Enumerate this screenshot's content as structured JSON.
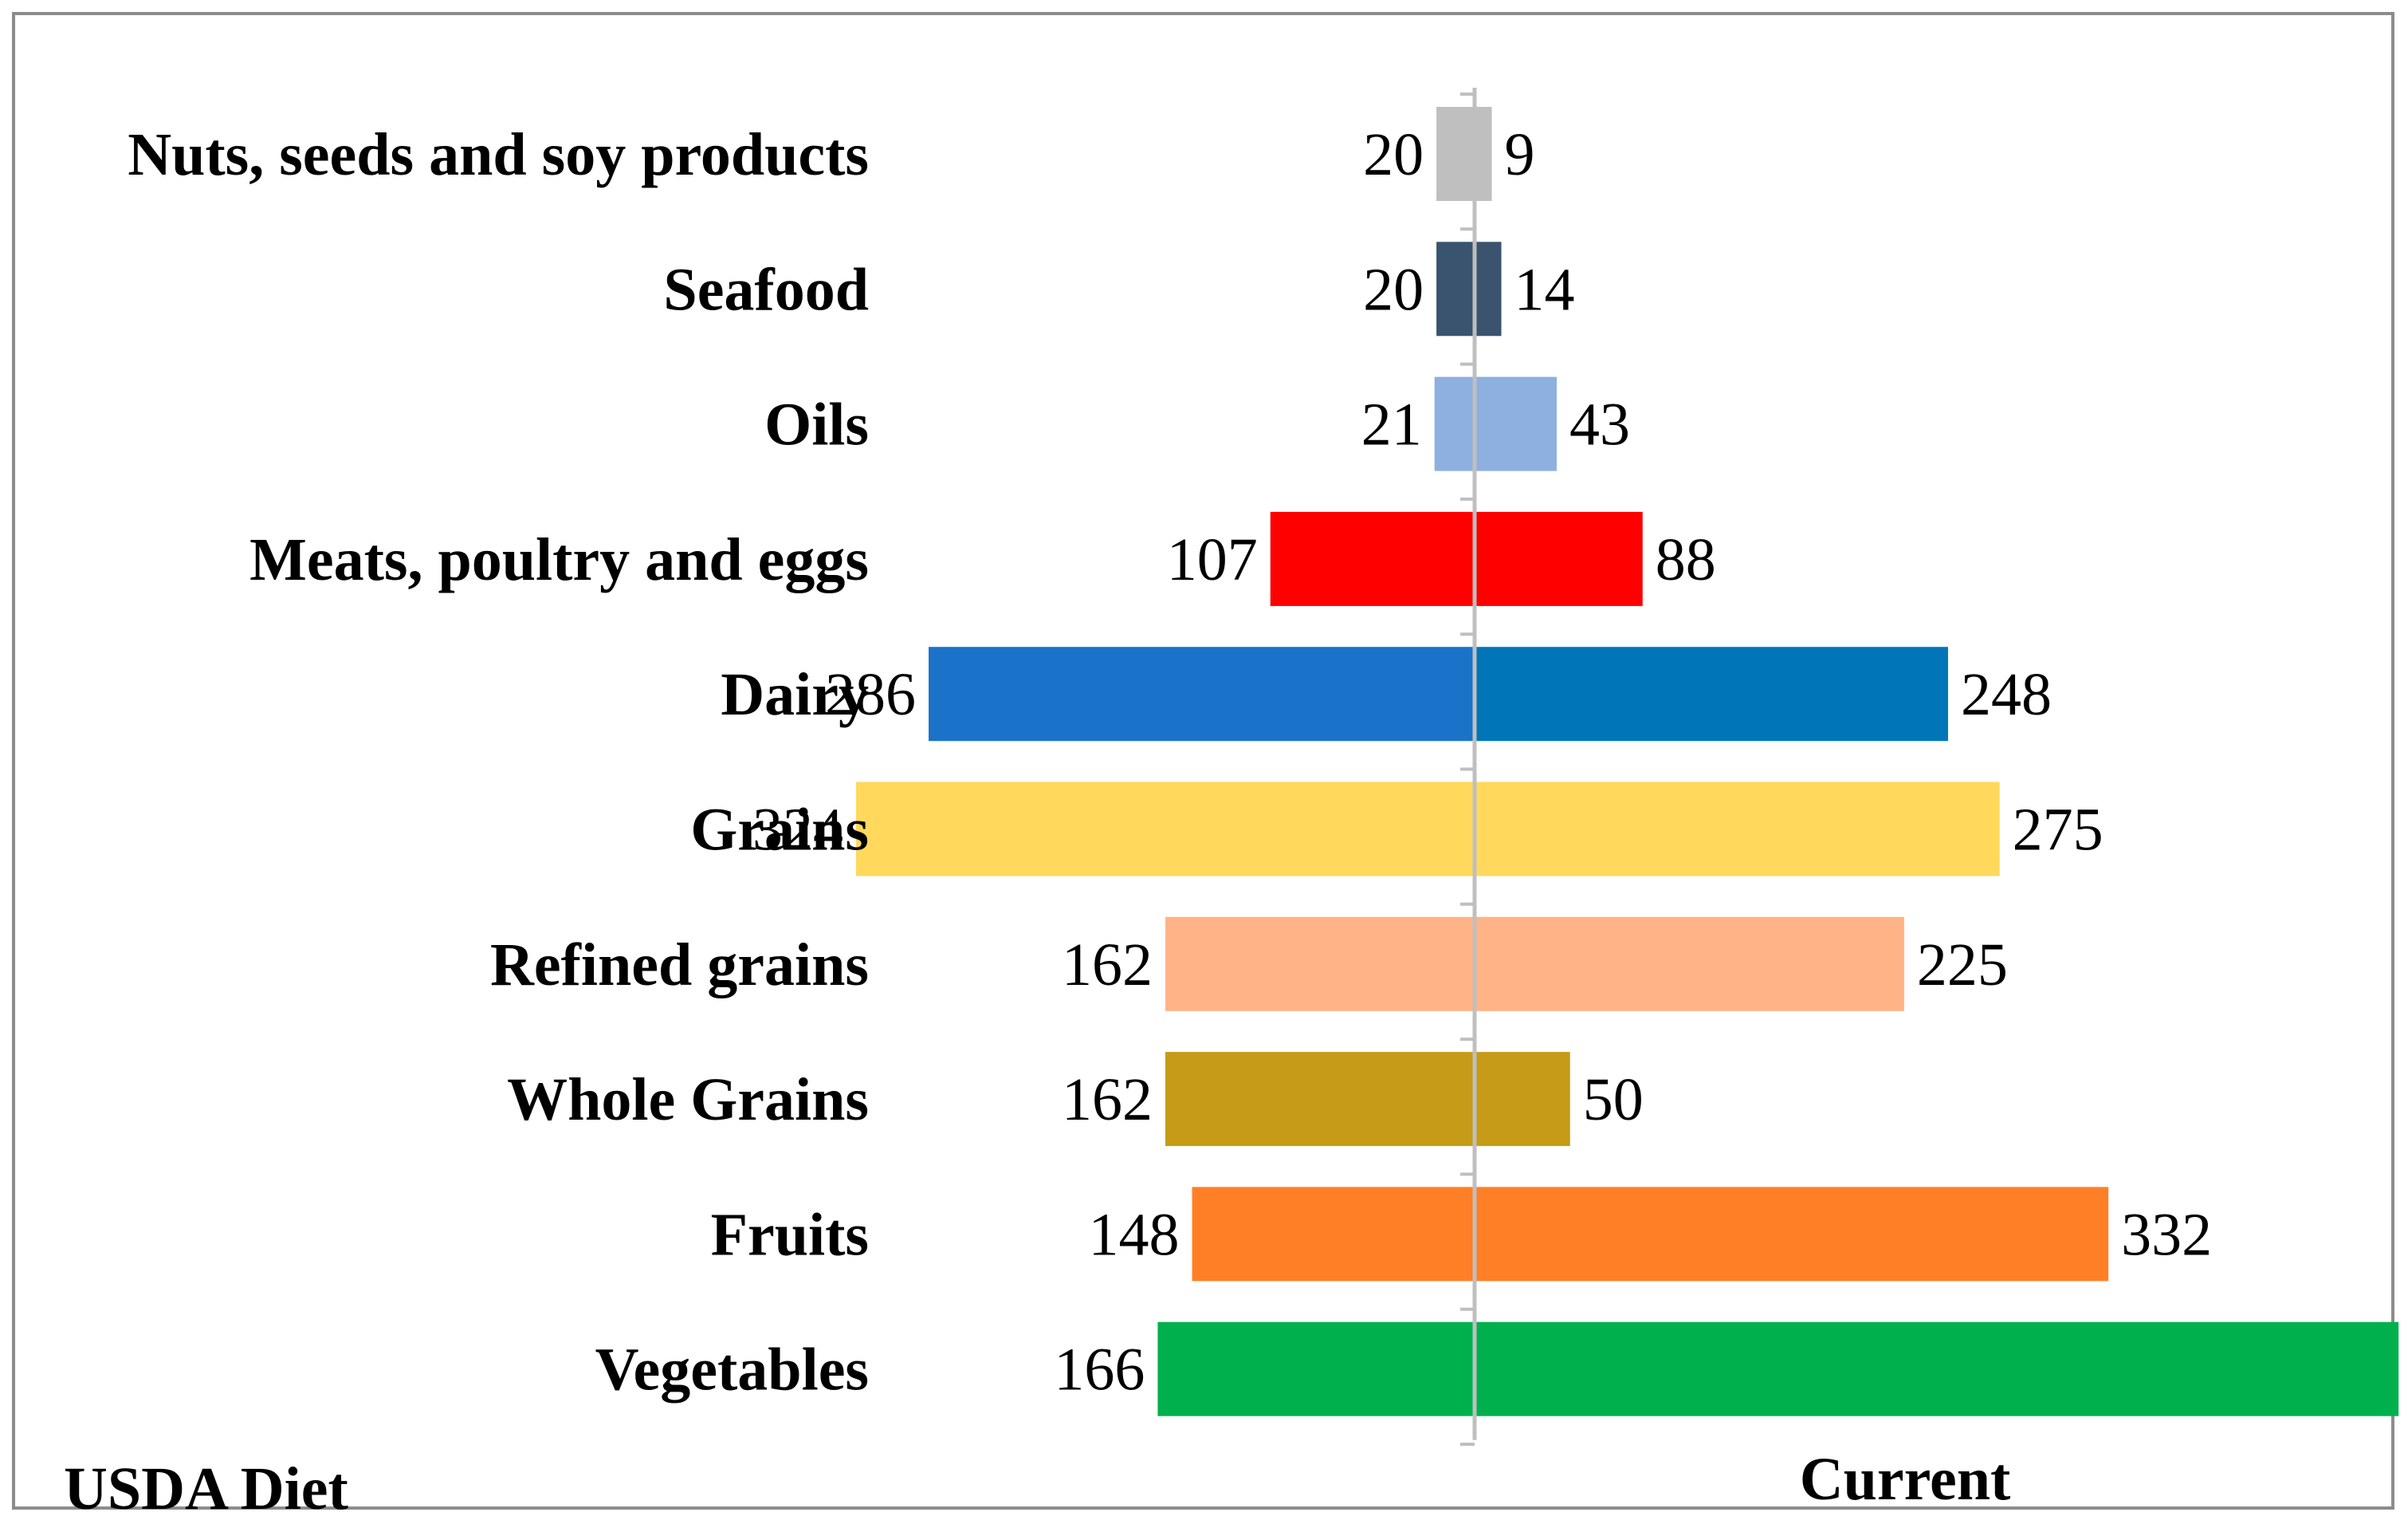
{
  "chart_data": {
    "type": "bar",
    "orientation": "horizontal-back-to-back",
    "categories": [
      "Nuts, seeds and soy products",
      "Seafood",
      "Oils",
      "Meats, poultry and eggs",
      "Dairy",
      "Grains",
      "Refined grains",
      "Whole Grains",
      "Fruits",
      "Vegetables"
    ],
    "series": [
      {
        "name": "USDA Diet",
        "side": "left",
        "values": [
          20,
          20,
          21,
          107,
          286,
          324,
          162,
          162,
          148,
          166
        ],
        "colors": [
          "#bfbfbf",
          "#3a536e",
          "#8db0e0",
          "#ff0000",
          "#1a73c9",
          "#ffd85c",
          "#ffb386",
          "#c59b17",
          "#ff7f27",
          "#00b04d"
        ]
      },
      {
        "name": "Current",
        "side": "right",
        "values": [
          9,
          14,
          43,
          88,
          248,
          275,
          225,
          50,
          332,
          484
        ],
        "colors": [
          "#bfbfbf",
          "#3a536e",
          "#8db0e0",
          "#ff0000",
          "#0076b9",
          "#ffd85c",
          "#ffb386",
          "#c59b17",
          "#ff7f27",
          "#00b04d"
        ]
      }
    ],
    "axis_color": "#bfbfbf",
    "border_color": "#8c8c8c"
  }
}
